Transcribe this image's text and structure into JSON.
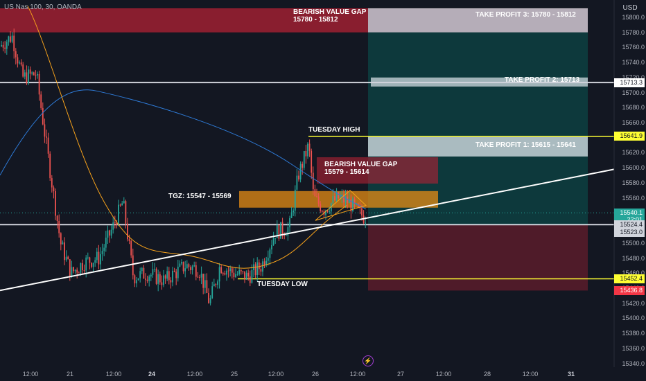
{
  "header": {
    "symbol": "US Nas 100, 30, OANDA",
    "currency": "USD"
  },
  "price_axis": {
    "ticks": [
      "15800.0",
      "15780.0",
      "15760.0",
      "15740.0",
      "15720.0",
      "15700.0",
      "15680.0",
      "15660.0",
      "15640.0",
      "15620.0",
      "15600.0",
      "15580.0",
      "15560.0",
      "15540.0",
      "15520.0",
      "15500.0",
      "15480.0",
      "15460.0",
      "15440.0",
      "15420.0",
      "15400.0",
      "15380.0",
      "15360.0",
      "15340.0"
    ],
    "tags": [
      {
        "label": "15713.3",
        "price": 15713.3,
        "bg": "#ffffff",
        "fg": "#131722"
      },
      {
        "label": "15641.9",
        "price": 15641.9,
        "bg": "#ffff33",
        "fg": "#131722"
      },
      {
        "label": "15540.1",
        "price": 15540.1,
        "bg": "#26a69a",
        "fg": "#ffffff"
      },
      {
        "label": "22:01",
        "price": 15531.0,
        "bg": "#26a69a",
        "fg": "#ffffff"
      },
      {
        "label": "15524.4",
        "price": 15524.4,
        "bg": "#d1d4dc",
        "fg": "#131722"
      },
      {
        "label": "15523.0",
        "price": 15514.0,
        "bg": "#d1d4dc",
        "fg": "#131722"
      },
      {
        "label": "15452.4",
        "price": 15452.4,
        "bg": "#ffff33",
        "fg": "#131722"
      },
      {
        "label": "15436.8",
        "price": 15436.8,
        "bg": "#f23645",
        "fg": "#ffffff"
      }
    ]
  },
  "time_axis": [
    {
      "label": "12:00",
      "bold": false
    },
    {
      "label": "21",
      "bold": false
    },
    {
      "label": "12:00",
      "bold": false
    },
    {
      "label": "24",
      "bold": true
    },
    {
      "label": "12:00",
      "bold": false
    },
    {
      "label": "25",
      "bold": false
    },
    {
      "label": "12:00",
      "bold": false
    },
    {
      "label": "26",
      "bold": false
    },
    {
      "label": "12:00",
      "bold": false
    },
    {
      "label": "27",
      "bold": false
    },
    {
      "label": "12:00",
      "bold": false
    },
    {
      "label": "28",
      "bold": false
    },
    {
      "label": "12:00",
      "bold": false
    },
    {
      "label": "31",
      "bold": true
    }
  ],
  "annotations": {
    "bvg_top": "BEARISH VALUE GAP\n15780 - 15812",
    "tp3": "TAKE PROFIT 3: 15780 - 15812",
    "tp2": "TAKE PROFIT 2: 15713",
    "tuesday_high": "TUESDAY HIGH",
    "tp1": "TAKE PROFIT 1: 15615 - 15641",
    "bvg_mid": "BEARISH VALUE GAP\n15579 - 15614",
    "tgz": "TGZ: 15547 - 15569",
    "tuesday_low": "TUESDAY LOW"
  },
  "colors": {
    "bull": "#26a69a",
    "bear": "#ef5350",
    "ema_fast": "#f7a21b",
    "ema_slow": "#2962ff",
    "level": "#ffff33"
  },
  "chart_data": {
    "type": "candlestick",
    "symbol": "US Nas 100",
    "timeframe": "30",
    "ylim": [
      15330,
      15815
    ],
    "x": [
      "12:00",
      "21",
      "12:00",
      "24",
      "12:00",
      "25",
      "12:00",
      "26",
      "12:00",
      "27",
      "12:00",
      "28",
      "12:00",
      "31"
    ],
    "zones": [
      {
        "name": "BEARISH VALUE GAP",
        "low": 15780,
        "high": 15812
      },
      {
        "name": "TAKE PROFIT 3",
        "low": 15780,
        "high": 15812
      },
      {
        "name": "TAKE PROFIT 2",
        "value": 15713
      },
      {
        "name": "TAKE PROFIT 1",
        "low": 15615,
        "high": 15641
      },
      {
        "name": "BEARISH VALUE GAP",
        "low": 15579,
        "high": 15614
      },
      {
        "name": "TGZ",
        "low": 15547,
        "high": 15569
      }
    ],
    "levels": [
      {
        "name": "TUESDAY HIGH",
        "value": 15641.9
      },
      {
        "name": "TUESDAY LOW",
        "value": 15452.4
      }
    ],
    "last_price": 15540.1
  }
}
